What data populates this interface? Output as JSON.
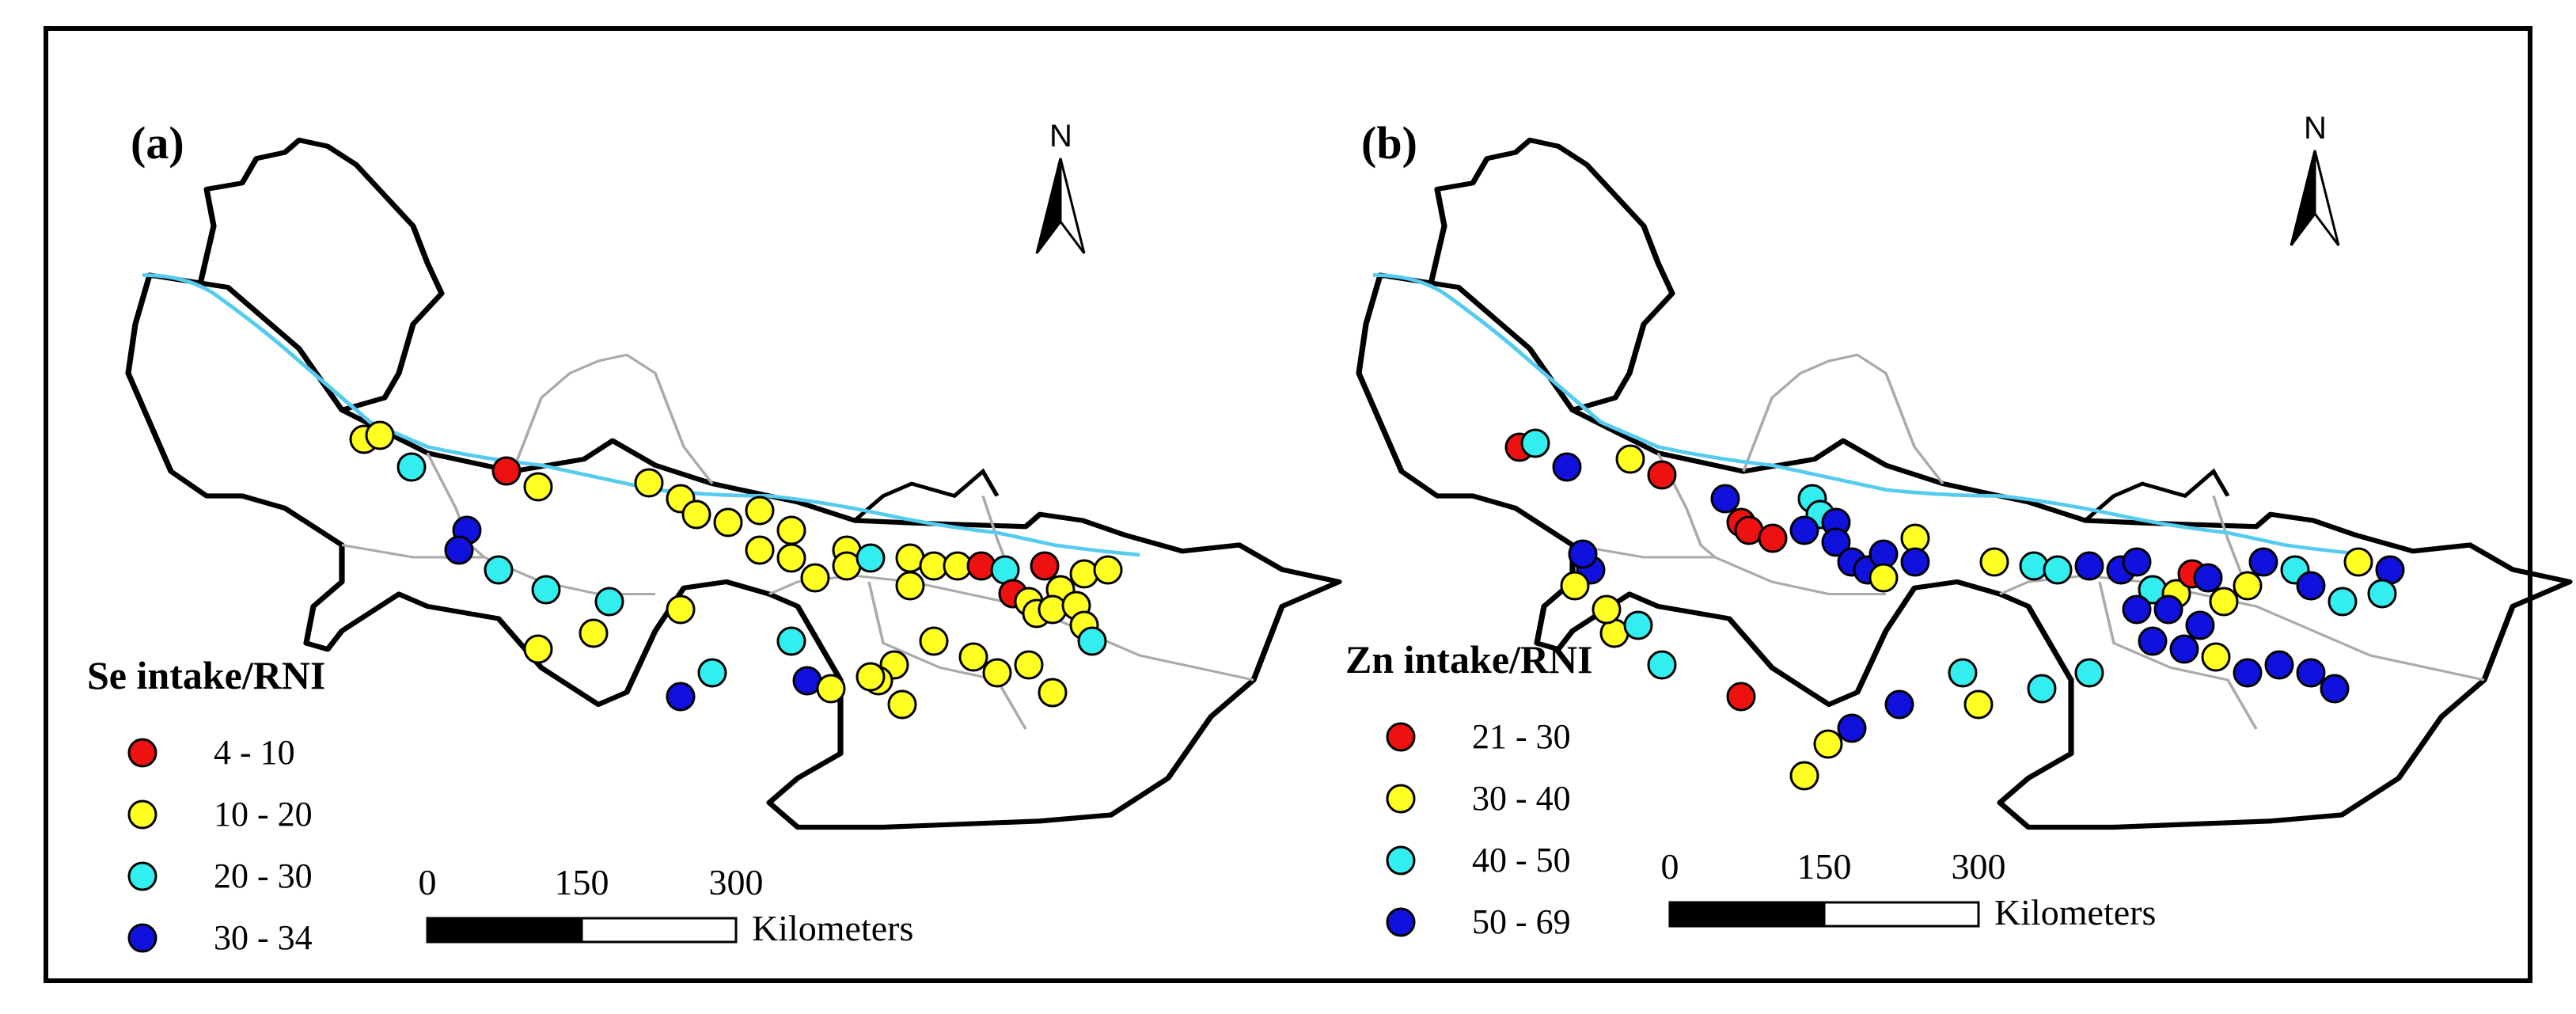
{
  "panels": [
    {
      "id": "a",
      "label": "(a)",
      "legend_title": "Se intake/RNI",
      "legend": [
        {
          "range": "4 - 10",
          "color": "#ee1111"
        },
        {
          "range": "10 - 20",
          "color": "#ffff22"
        },
        {
          "range": "20 - 30",
          "color": "#33eeee"
        },
        {
          "range": "30 - 34",
          "color": "#1111dd"
        }
      ],
      "scale_labels": [
        "0",
        "150",
        "300"
      ],
      "scale_unit": "Kilometers",
      "north_label": "N"
    },
    {
      "id": "b",
      "label": "(b)",
      "legend_title": "Zn intake/RNI",
      "legend": [
        {
          "range": "21 - 30",
          "color": "#ee1111"
        },
        {
          "range": "30 - 40",
          "color": "#ffff22"
        },
        {
          "range": "40 - 50",
          "color": "#33eeee"
        },
        {
          "range": "50 - 69",
          "color": "#1111dd"
        }
      ],
      "scale_labels": [
        "0",
        "150",
        "300"
      ],
      "scale_unit": "Kilometers",
      "north_label": "N"
    }
  ],
  "colors": {
    "river": "#55ccee",
    "boundary": "#000000",
    "county_lines": "#bbbbbb"
  }
}
